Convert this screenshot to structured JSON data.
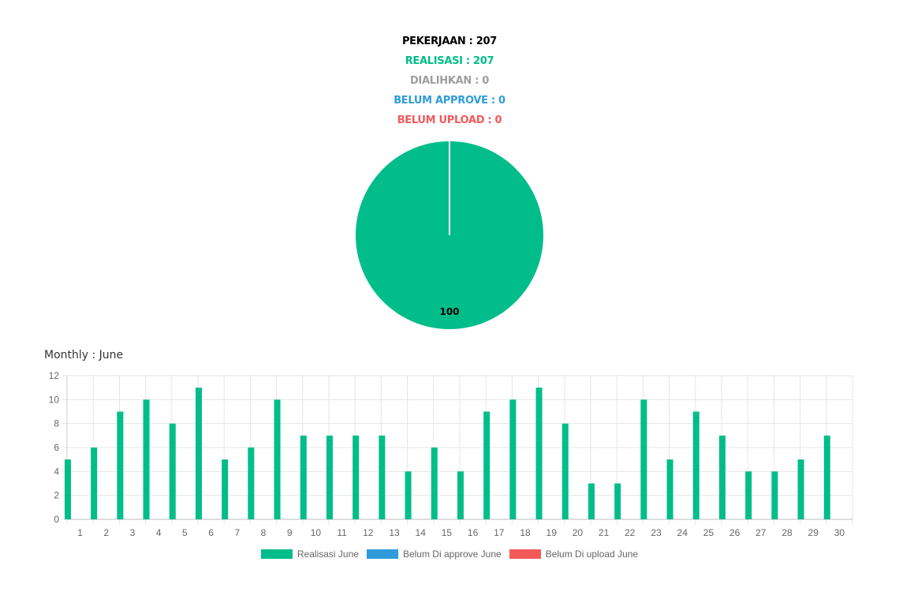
{
  "stats": {
    "pekerjaan": "PEKERJAAN : 207",
    "realisasi": "REALISASI : 207",
    "dialihkan": "DIALIHKAN : 0",
    "belum_approve": "BELUM APPROVE : 0",
    "belum_upload": "BELUM UPLOAD : 0"
  },
  "colors": {
    "pekerjaan": "#000000",
    "realisasi": "#00BD8A",
    "dialihkan": "#9E9E9E",
    "belum_approve": "#2F9BDA",
    "belum_upload": "#F25A5A",
    "grid": "#E6E6E6",
    "tick": "#666666"
  },
  "monthly_title": "Monthly : June",
  "chart_data": [
    {
      "type": "pie",
      "slices": [
        {
          "label": "Realisasi",
          "value": 100,
          "data_label": "100",
          "color": "#00BD8A"
        }
      ]
    },
    {
      "type": "bar",
      "categories": [
        "1",
        "2",
        "3",
        "4",
        "5",
        "6",
        "7",
        "8",
        "9",
        "10",
        "11",
        "12",
        "13",
        "14",
        "15",
        "16",
        "17",
        "18",
        "19",
        "20",
        "21",
        "22",
        "23",
        "24",
        "25",
        "26",
        "27",
        "28",
        "29",
        "30"
      ],
      "series": [
        {
          "name": "Realisasi June",
          "color": "#00BD8A",
          "values": [
            5,
            6,
            9,
            10,
            8,
            11,
            5,
            6,
            10,
            7,
            7,
            7,
            7,
            4,
            6,
            4,
            9,
            10,
            11,
            8,
            3,
            3,
            10,
            5,
            9,
            7,
            4,
            4,
            5,
            7
          ]
        },
        {
          "name": "Belum Di approve June",
          "color": "#2F9BDA",
          "values": [
            0,
            0,
            0,
            0,
            0,
            0,
            0,
            0,
            0,
            0,
            0,
            0,
            0,
            0,
            0,
            0,
            0,
            0,
            0,
            0,
            0,
            0,
            0,
            0,
            0,
            0,
            0,
            0,
            0,
            0
          ]
        },
        {
          "name": "Belum Di upload June",
          "color": "#F25A5A",
          "values": [
            0,
            0,
            0,
            0,
            0,
            0,
            0,
            0,
            0,
            0,
            0,
            0,
            0,
            0,
            0,
            0,
            0,
            0,
            0,
            0,
            0,
            0,
            0,
            0,
            0,
            0,
            0,
            0,
            0,
            0
          ]
        }
      ],
      "ylim": [
        0,
        12
      ],
      "yticks": [
        0,
        2,
        4,
        6,
        8,
        10,
        12
      ],
      "grid": true,
      "legend_position": "bottom"
    }
  ]
}
